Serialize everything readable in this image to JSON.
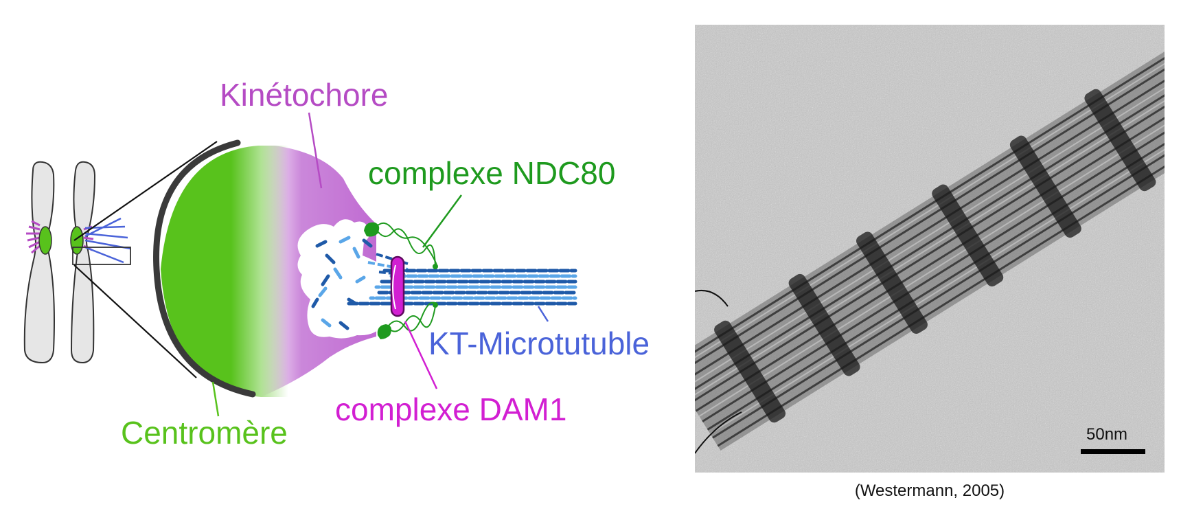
{
  "labels": {
    "kinetochore": "Kinétochore",
    "ndc80": "complexe NDC80",
    "microtubule": "KT-Microtutuble",
    "dam1": "complexe DAM1",
    "centromere": "Centromère"
  },
  "micrograph": {
    "scale_bar": "50nm",
    "credit": "(Westermann, 2005)"
  },
  "colors": {
    "kinetochore": "#b54bc4",
    "ndc80": "#1e9a1e",
    "microtubule": "#4a63d9",
    "dam1": "#d21fd2",
    "centromere": "#58c21c",
    "chromosome_fill": "#e6e6e6",
    "centromere_arc": "#3a3a3a"
  }
}
